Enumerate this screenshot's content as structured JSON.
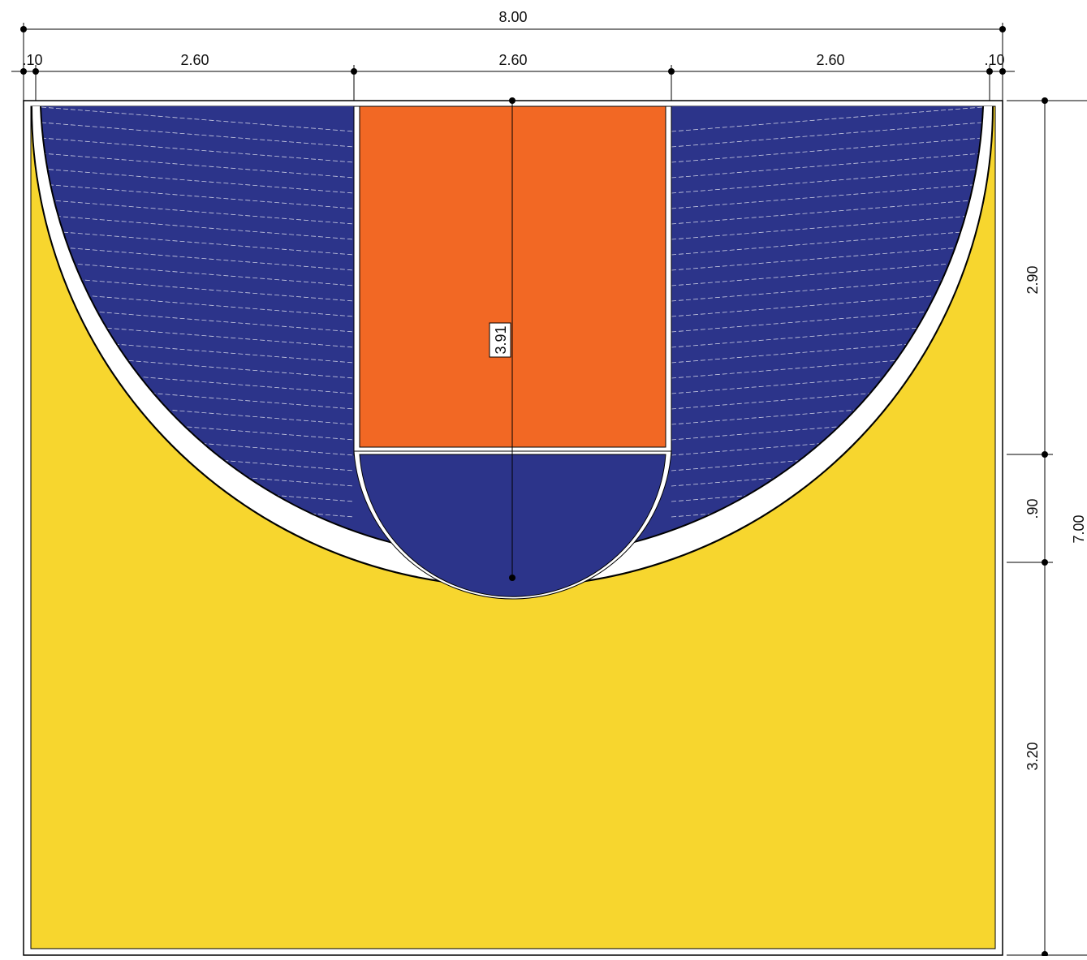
{
  "colors": {
    "yellow": "#F7D62E",
    "blue": "#2C348A",
    "orange": "#F26824",
    "line": "#FFFFFF",
    "ink": "#000000"
  },
  "dims": {
    "total_width": "8.00",
    "left_margin": ".10",
    "left_span": "2.60",
    "center_span": "2.60",
    "right_span": "2.60",
    "right_margin": ".10",
    "top_depth": "2.90",
    "arc_depth": ".90",
    "bottom_depth": "3.20",
    "total_depth": "7.00",
    "radius": "3.91"
  }
}
